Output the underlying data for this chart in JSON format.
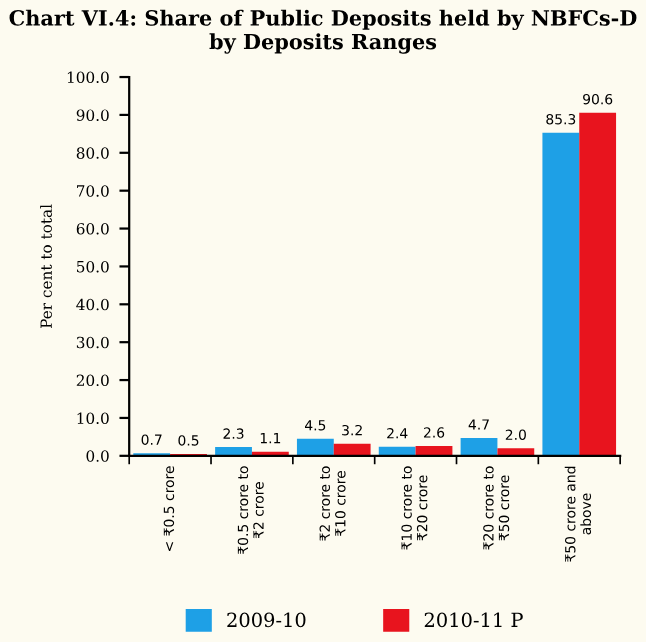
{
  "chart_data": {
    "type": "bar",
    "title": "Chart VI.4: Share of Public Deposits held by NBFCs-D\nby Deposits Ranges",
    "ylabel": "Per cent to total",
    "categories": [
      "< ₹0.5 crore",
      "₹0.5 crore to\n₹2 crore",
      "₹2 crore to\n₹10 crore",
      "₹10 crore to\n₹20 crore",
      "₹20 crore to\n₹50 crore",
      "₹50 crore and\nabove"
    ],
    "series": [
      {
        "name": "2009-10",
        "color": "#1ea0e6",
        "values": [
          0.7,
          2.3,
          4.5,
          2.4,
          4.7,
          85.3
        ],
        "value_labels": [
          "0.7",
          "2.3",
          "4.5",
          "2.4",
          "4.7",
          "85.3"
        ]
      },
      {
        "name": "2010-11 P",
        "color": "#e8141e",
        "values": [
          0.5,
          1.1,
          3.2,
          2.6,
          2.0,
          90.6
        ],
        "value_labels": [
          "0.5",
          "1.1",
          "3.2",
          "2.6",
          "2.0",
          "90.6"
        ]
      }
    ],
    "ylim": [
      0,
      100
    ],
    "yticks": [
      {
        "value": 0,
        "label": "0.0"
      },
      {
        "value": 10,
        "label": "10.0"
      },
      {
        "value": 20,
        "label": "20.0"
      },
      {
        "value": 30,
        "label": "30.0"
      },
      {
        "value": 40,
        "label": "40.0"
      },
      {
        "value": 50,
        "label": "50.0"
      },
      {
        "value": 60,
        "label": "60.0"
      },
      {
        "value": 70,
        "label": "70.0"
      },
      {
        "value": 80,
        "label": "80.0"
      },
      {
        "value": 90,
        "label": "90.0"
      },
      {
        "value": 100,
        "label": "100.0"
      }
    ],
    "grid": false,
    "legend": "bottom"
  }
}
